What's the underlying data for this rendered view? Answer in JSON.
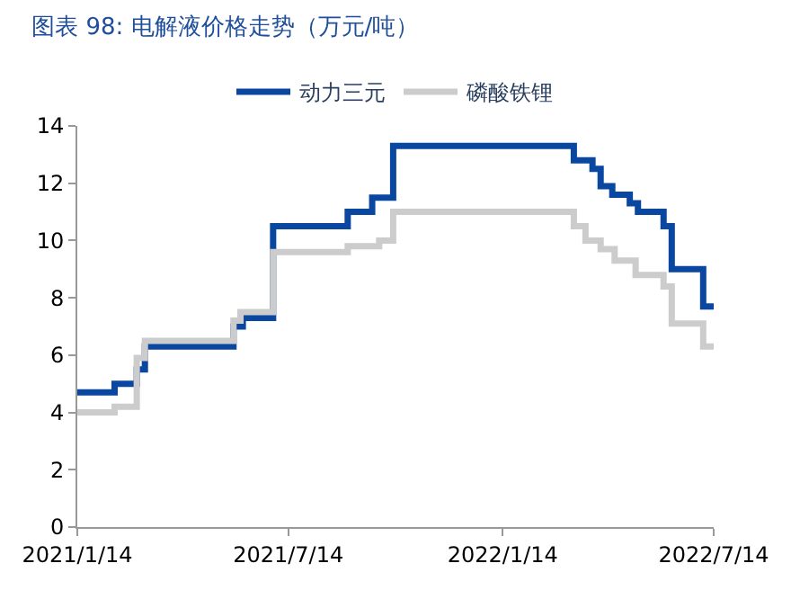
{
  "chart_data": {
    "type": "step",
    "title": "图表 98: 电解液价格走势（万元/吨）",
    "series": [
      {
        "name": "动力三元",
        "color": "#0a47a0",
        "x": [
          "2021-01-14",
          "2021-02-15",
          "2021-03-06",
          "2021-03-13",
          "2021-05-28",
          "2021-06-05",
          "2021-07-01",
          "2021-09-03",
          "2021-09-24",
          "2021-10-12",
          "2022-03-16",
          "2022-04-01",
          "2022-04-08",
          "2022-04-18",
          "2022-05-03",
          "2022-05-10",
          "2022-06-01",
          "2022-06-08",
          "2022-07-05",
          "2022-07-14"
        ],
        "values": [
          4.7,
          5.0,
          5.5,
          6.3,
          7.0,
          7.3,
          10.5,
          11.0,
          11.5,
          13.3,
          12.8,
          12.5,
          11.9,
          11.6,
          11.3,
          11.0,
          10.5,
          9.0,
          7.7,
          7.7
        ]
      },
      {
        "name": "磷酸铁锂",
        "color": "#cccccc",
        "x": [
          "2021-01-14",
          "2021-02-15",
          "2021-03-06",
          "2021-03-13",
          "2021-05-28",
          "2021-06-03",
          "2021-07-01",
          "2021-09-03",
          "2021-09-30",
          "2021-10-12",
          "2022-03-16",
          "2022-03-26",
          "2022-04-08",
          "2022-04-20",
          "2022-05-08",
          "2022-06-01",
          "2022-06-08",
          "2022-07-05",
          "2022-07-14"
        ],
        "values": [
          4.0,
          4.2,
          5.9,
          6.5,
          7.2,
          7.5,
          9.6,
          9.8,
          10.0,
          11.0,
          10.5,
          10.0,
          9.7,
          9.3,
          8.8,
          8.4,
          7.1,
          6.3,
          6.3
        ]
      }
    ],
    "xlim": [
      "2021-01-14",
      "2022-07-14"
    ],
    "xticks": [
      {
        "value": "2021-01-14",
        "label": "2021/1/14"
      },
      {
        "value": "2021-07-14",
        "label": "2021/7/14"
      },
      {
        "value": "2022-01-14",
        "label": "2022/1/14"
      },
      {
        "value": "2022-07-14",
        "label": "2022/7/14"
      }
    ],
    "ylim": [
      0,
      14
    ],
    "yticks": [
      0,
      2,
      4,
      6,
      8,
      10,
      12,
      14
    ],
    "legend": "top"
  }
}
